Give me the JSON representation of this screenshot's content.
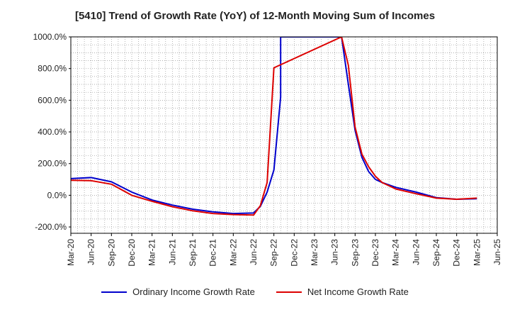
{
  "chart_data": {
    "type": "line",
    "title": "[5410]  Trend of Growth Rate (YoY) of 12-Month Moving Sum of Incomes",
    "xlabel": "",
    "ylabel": "",
    "x_tick_labels": [
      "Mar-20",
      "Jun-20",
      "Sep-20",
      "Dec-20",
      "Mar-21",
      "Jun-21",
      "Sep-21",
      "Dec-21",
      "Mar-22",
      "Jun-22",
      "Sep-22",
      "Dec-22",
      "Mar-23",
      "Jun-23",
      "Sep-23",
      "Dec-23",
      "Mar-24",
      "Jun-24",
      "Sep-24",
      "Dec-24",
      "Mar-25",
      "Jun-25"
    ],
    "y_tick_labels": [
      "1000.0%",
      "800.0%",
      "600.0%",
      "400.0%",
      "200.0%",
      "0.0%",
      "-200.0%"
    ],
    "ylim": [
      -240,
      1000
    ],
    "grid": true,
    "legend_position": "bottom",
    "series": [
      {
        "name": "Ordinary Income Growth Rate",
        "color": "#0000cc",
        "points": [
          [
            "Mar-20",
            105
          ],
          [
            "Jun-20",
            112
          ],
          [
            "Sep-20",
            85
          ],
          [
            "Dec-20",
            20
          ],
          [
            "Mar-21",
            -30
          ],
          [
            "Jun-21",
            -62
          ],
          [
            "Sep-21",
            -88
          ],
          [
            "Dec-21",
            -105
          ],
          [
            "Mar-22",
            -115
          ],
          [
            "Jun-22",
            -112
          ],
          [
            "Jul-22",
            -70
          ],
          [
            "Aug-22",
            20
          ],
          [
            "Sep-22",
            160
          ],
          [
            "Oct-22",
            620
          ],
          [
            "Oct-22",
            1000
          ],
          [
            "Jul-23",
            1000
          ],
          [
            "Aug-23",
            700
          ],
          [
            "Sep-23",
            410
          ],
          [
            "Oct-23",
            240
          ],
          [
            "Nov-23",
            150
          ],
          [
            "Dec-23",
            100
          ],
          [
            "Jan-24",
            80
          ],
          [
            "Mar-24",
            50
          ],
          [
            "Jun-24",
            20
          ],
          [
            "Sep-24",
            -15
          ],
          [
            "Dec-24",
            -25
          ],
          [
            "Mar-25",
            -22
          ]
        ]
      },
      {
        "name": "Net Income Growth Rate",
        "color": "#dd0000",
        "points": [
          [
            "Mar-20",
            95
          ],
          [
            "Jun-20",
            92
          ],
          [
            "Sep-20",
            70
          ],
          [
            "Dec-20",
            0
          ],
          [
            "Mar-21",
            -38
          ],
          [
            "Jun-21",
            -72
          ],
          [
            "Sep-21",
            -98
          ],
          [
            "Dec-21",
            -115
          ],
          [
            "Mar-22",
            -122
          ],
          [
            "Jun-22",
            -125
          ],
          [
            "Jul-22",
            -65
          ],
          [
            "Aug-22",
            80
          ],
          [
            "Sep-22",
            805
          ],
          [
            "Jul-23",
            1000
          ],
          [
            "Aug-23",
            820
          ],
          [
            "Sep-23",
            430
          ],
          [
            "Oct-23",
            260
          ],
          [
            "Nov-23",
            180
          ],
          [
            "Dec-23",
            120
          ],
          [
            "Jan-24",
            80
          ],
          [
            "Mar-24",
            40
          ],
          [
            "Jun-24",
            10
          ],
          [
            "Sep-24",
            -18
          ],
          [
            "Dec-24",
            -25
          ],
          [
            "Mar-25",
            -18
          ]
        ]
      }
    ]
  }
}
